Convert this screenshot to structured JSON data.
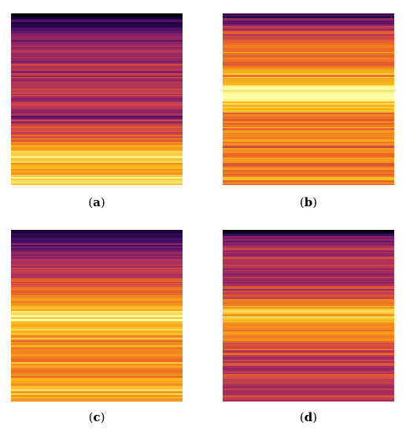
{
  "colormap": [
    "#000004",
    "#320a5e",
    "#781b6c",
    "#bc3754",
    "#ed6925",
    "#fbb61a",
    "#fcffa4"
  ],
  "panels": [
    {
      "label": "a",
      "bands": [
        [
          0.0,
          0.02
        ],
        [
          0.02,
          0.1
        ],
        [
          0.05,
          0.18
        ],
        [
          0.08,
          0.22
        ],
        [
          0.12,
          0.3
        ],
        [
          0.2,
          0.4
        ],
        [
          0.3,
          0.46
        ],
        [
          0.35,
          0.48
        ],
        [
          0.38,
          0.5
        ],
        [
          0.4,
          0.42
        ],
        [
          0.45,
          0.5
        ],
        [
          0.55,
          0.46
        ],
        [
          0.6,
          0.32
        ],
        [
          0.62,
          0.5
        ],
        [
          0.68,
          0.58
        ],
        [
          0.72,
          0.66
        ],
        [
          0.76,
          0.74
        ],
        [
          0.8,
          0.84
        ],
        [
          0.84,
          0.96
        ],
        [
          0.87,
          0.8
        ],
        [
          0.9,
          0.72
        ],
        [
          0.93,
          0.78
        ],
        [
          0.96,
          0.9
        ],
        [
          1.0,
          0.85
        ]
      ]
    },
    {
      "label": "b",
      "bands": [
        [
          0.0,
          0.2
        ],
        [
          0.03,
          0.3
        ],
        [
          0.06,
          0.42
        ],
        [
          0.1,
          0.55
        ],
        [
          0.15,
          0.62
        ],
        [
          0.22,
          0.68
        ],
        [
          0.3,
          0.72
        ],
        [
          0.38,
          0.82
        ],
        [
          0.42,
          0.96
        ],
        [
          0.47,
          1.0
        ],
        [
          0.52,
          0.9
        ],
        [
          0.57,
          0.74
        ],
        [
          0.63,
          0.68
        ],
        [
          0.7,
          0.72
        ],
        [
          0.77,
          0.66
        ],
        [
          0.84,
          0.74
        ],
        [
          0.9,
          0.7
        ],
        [
          0.95,
          0.76
        ],
        [
          1.0,
          0.72
        ]
      ]
    },
    {
      "label": "c",
      "bands": [
        [
          0.0,
          0.0
        ],
        [
          0.03,
          0.12
        ],
        [
          0.07,
          0.26
        ],
        [
          0.12,
          0.38
        ],
        [
          0.18,
          0.46
        ],
        [
          0.25,
          0.52
        ],
        [
          0.32,
          0.6
        ],
        [
          0.38,
          0.72
        ],
        [
          0.44,
          0.84
        ],
        [
          0.5,
          0.98
        ],
        [
          0.55,
          0.9
        ],
        [
          0.62,
          0.78
        ],
        [
          0.7,
          0.7
        ],
        [
          0.78,
          0.8
        ],
        [
          0.84,
          0.74
        ],
        [
          0.9,
          0.86
        ],
        [
          0.95,
          0.78
        ],
        [
          1.0,
          0.82
        ]
      ]
    },
    {
      "label": "d",
      "bands": [
        [
          0.0,
          0.0
        ],
        [
          0.02,
          0.2
        ],
        [
          0.06,
          0.4
        ],
        [
          0.12,
          0.48
        ],
        [
          0.2,
          0.42
        ],
        [
          0.28,
          0.46
        ],
        [
          0.34,
          0.52
        ],
        [
          0.4,
          0.66
        ],
        [
          0.45,
          0.78
        ],
        [
          0.5,
          0.86
        ],
        [
          0.55,
          0.8
        ],
        [
          0.6,
          0.7
        ],
        [
          0.66,
          0.62
        ],
        [
          0.72,
          0.56
        ],
        [
          0.78,
          0.5
        ],
        [
          0.84,
          0.52
        ],
        [
          0.9,
          0.46
        ],
        [
          0.95,
          0.5
        ],
        [
          1.0,
          0.48
        ]
      ]
    }
  ],
  "captions": {
    "a": "a",
    "b": "b",
    "c": "c",
    "d": "d"
  }
}
